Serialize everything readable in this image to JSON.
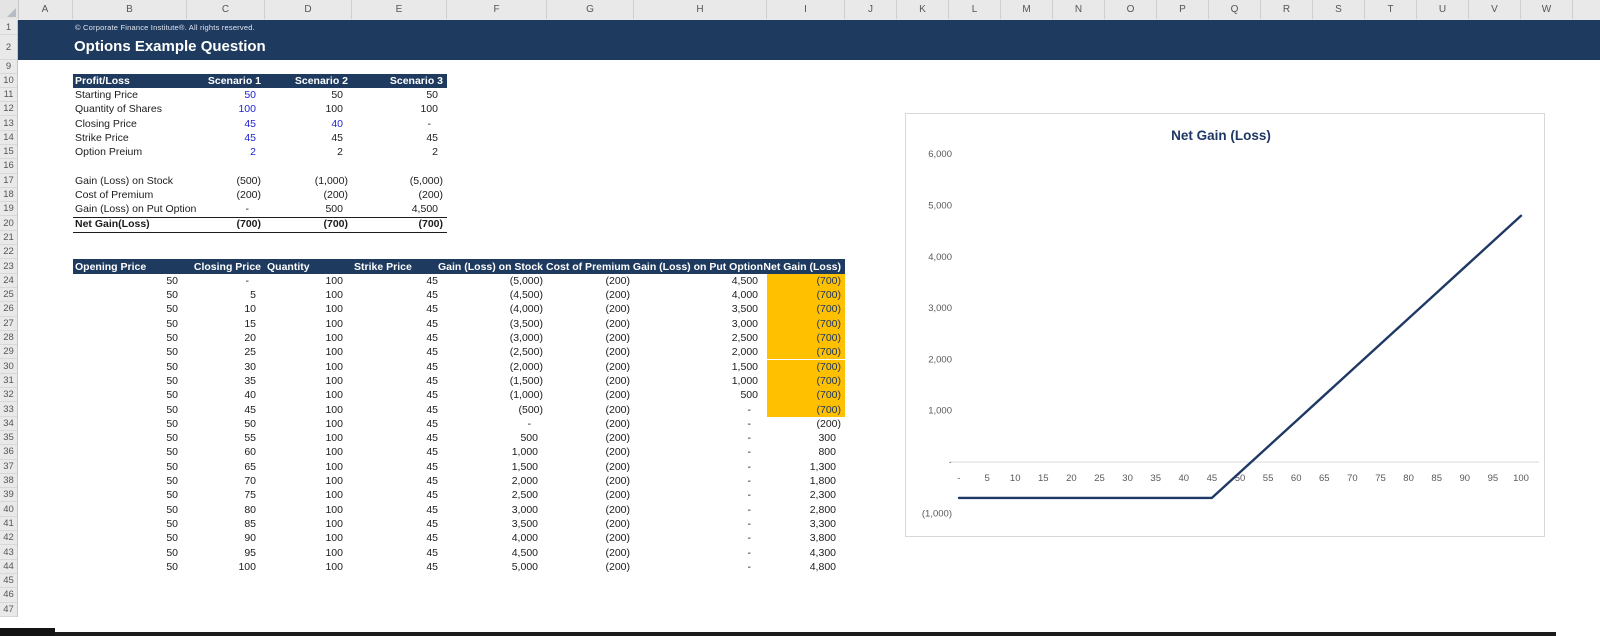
{
  "app": {
    "copyright": "© Corporate Finance Institute®. All rights reserved.",
    "title": "Options Example Question"
  },
  "grid": {
    "column_letters": [
      "A",
      "B",
      "C",
      "D",
      "E",
      "F",
      "G",
      "H",
      "I",
      "J",
      "K",
      "L",
      "M",
      "N",
      "O",
      "P",
      "Q",
      "R",
      "S",
      "T",
      "U",
      "V",
      "W"
    ],
    "row_numbers": [
      "1",
      "2",
      "9",
      "10",
      "11",
      "12",
      "13",
      "14",
      "15",
      "16",
      "17",
      "18",
      "19",
      "20",
      "21",
      "22",
      "23",
      "24",
      "25",
      "26",
      "27",
      "28",
      "29",
      "30",
      "31",
      "32",
      "33",
      "34",
      "35",
      "36",
      "37",
      "38",
      "39",
      "40",
      "41",
      "42",
      "43",
      "44",
      "45",
      "46",
      "47"
    ]
  },
  "colors": {
    "navy": "#1e3a5f",
    "highlight": "#ffc000",
    "input_blue": "#2323d6",
    "chart_line": "#1f3864",
    "axis_text": "#595959",
    "gridline": "#d9d9d9"
  },
  "scenario_table": {
    "header": [
      "Profit/Loss",
      "Scenario 1",
      "Scenario 2",
      "Scenario 3"
    ],
    "input_rows": [
      {
        "label": "Starting Price",
        "values": [
          "50",
          "50",
          "50"
        ],
        "blue": [
          true,
          false,
          false
        ]
      },
      {
        "label": "Quantity of Shares",
        "values": [
          "100",
          "100",
          "100"
        ],
        "blue": [
          true,
          false,
          false
        ]
      },
      {
        "label": "Closing Price",
        "values": [
          "45",
          "40",
          "-"
        ],
        "blue": [
          true,
          true,
          false
        ]
      },
      {
        "label": "Strike Price",
        "values": [
          "45",
          "45",
          "45"
        ],
        "blue": [
          true,
          false,
          false
        ]
      },
      {
        "label": "Option Preium",
        "values": [
          "2",
          "2",
          "2"
        ],
        "blue": [
          true,
          false,
          false
        ]
      }
    ],
    "calc_rows": [
      {
        "label": "Gain (Loss) on Stock",
        "values": [
          "(500)",
          "(1,000)",
          "(5,000)"
        ]
      },
      {
        "label": "Cost of Premium",
        "values": [
          "(200)",
          "(200)",
          "(200)"
        ]
      },
      {
        "label": "Gain (Loss) on Put Option",
        "values": [
          "-",
          "500",
          "4,500"
        ]
      }
    ],
    "total_row": {
      "label": "Net Gain(Loss)",
      "values": [
        "(700)",
        "(700)",
        "(700)"
      ]
    }
  },
  "data_table": {
    "headers": [
      "Opening Price",
      "Closing Price",
      "Quantity",
      "Strike Price",
      "Gain (Loss) on Stock",
      "Cost of Premium",
      "Gain (Loss) on Put Option",
      "Net Gain (Loss)"
    ],
    "rows": [
      [
        "50",
        "-",
        "100",
        "45",
        "(5,000)",
        "(200)",
        "4,500",
        "(700)"
      ],
      [
        "50",
        "5",
        "100",
        "45",
        "(4,500)",
        "(200)",
        "4,000",
        "(700)"
      ],
      [
        "50",
        "10",
        "100",
        "45",
        "(4,000)",
        "(200)",
        "3,500",
        "(700)"
      ],
      [
        "50",
        "15",
        "100",
        "45",
        "(3,500)",
        "(200)",
        "3,000",
        "(700)"
      ],
      [
        "50",
        "20",
        "100",
        "45",
        "(3,000)",
        "(200)",
        "2,500",
        "(700)"
      ],
      [
        "50",
        "25",
        "100",
        "45",
        "(2,500)",
        "(200)",
        "2,000",
        "(700)"
      ],
      [
        "50",
        "30",
        "100",
        "45",
        "(2,000)",
        "(200)",
        "1,500",
        "(700)"
      ],
      [
        "50",
        "35",
        "100",
        "45",
        "(1,500)",
        "(200)",
        "1,000",
        "(700)"
      ],
      [
        "50",
        "40",
        "100",
        "45",
        "(1,000)",
        "(200)",
        "500",
        "(700)"
      ],
      [
        "50",
        "45",
        "100",
        "45",
        "(500)",
        "(200)",
        "-",
        "(700)"
      ],
      [
        "50",
        "50",
        "100",
        "45",
        "-",
        "(200)",
        "-",
        "(200)"
      ],
      [
        "50",
        "55",
        "100",
        "45",
        "500",
        "(200)",
        "-",
        "300"
      ],
      [
        "50",
        "60",
        "100",
        "45",
        "1,000",
        "(200)",
        "-",
        "800"
      ],
      [
        "50",
        "65",
        "100",
        "45",
        "1,500",
        "(200)",
        "-",
        "1,300"
      ],
      [
        "50",
        "70",
        "100",
        "45",
        "2,000",
        "(200)",
        "-",
        "1,800"
      ],
      [
        "50",
        "75",
        "100",
        "45",
        "2,500",
        "(200)",
        "-",
        "2,300"
      ],
      [
        "50",
        "80",
        "100",
        "45",
        "3,000",
        "(200)",
        "-",
        "2,800"
      ],
      [
        "50",
        "85",
        "100",
        "45",
        "3,500",
        "(200)",
        "-",
        "3,300"
      ],
      [
        "50",
        "90",
        "100",
        "45",
        "4,000",
        "(200)",
        "-",
        "3,800"
      ],
      [
        "50",
        "95",
        "100",
        "45",
        "4,500",
        "(200)",
        "-",
        "4,300"
      ],
      [
        "50",
        "100",
        "100",
        "45",
        "5,000",
        "(200)",
        "-",
        "4,800"
      ]
    ],
    "highlight_row_count": 10,
    "highlight_col_index": 7
  },
  "chart_data": {
    "type": "line",
    "title": "Net Gain (Loss)",
    "x": [
      0,
      5,
      10,
      15,
      20,
      25,
      30,
      35,
      40,
      45,
      50,
      55,
      60,
      65,
      70,
      75,
      80,
      85,
      90,
      95,
      100
    ],
    "x_tick_labels": [
      "-",
      "5",
      "10",
      "15",
      "20",
      "25",
      "30",
      "35",
      "40",
      "45",
      "50",
      "55",
      "60",
      "65",
      "70",
      "75",
      "80",
      "85",
      "90",
      "95",
      "100"
    ],
    "series": [
      {
        "name": "Net Gain (Loss)",
        "values": [
          -700,
          -700,
          -700,
          -700,
          -700,
          -700,
          -700,
          -700,
          -700,
          -700,
          -200,
          300,
          800,
          1300,
          1800,
          2300,
          2800,
          3300,
          3800,
          4300,
          4800
        ]
      }
    ],
    "y_ticks": [
      {
        "label": "6,000",
        "value": 6000
      },
      {
        "label": "5,000",
        "value": 5000
      },
      {
        "label": "4,000",
        "value": 4000
      },
      {
        "label": "3,000",
        "value": 3000
      },
      {
        "label": "2,000",
        "value": 2000
      },
      {
        "label": "1,000",
        "value": 1000
      },
      {
        "label": "-",
        "value": 0
      },
      {
        "label": "(1,000)",
        "value": -1000
      }
    ],
    "ylim": [
      -1000,
      6000
    ],
    "xlabel": "",
    "ylabel": "",
    "legend": "none",
    "grid": "zero-axis-only"
  }
}
